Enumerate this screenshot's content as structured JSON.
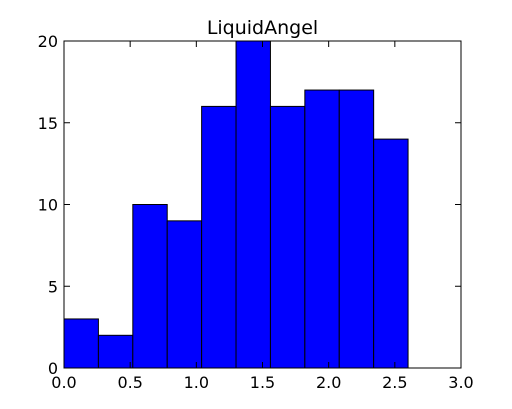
{
  "chart_data": {
    "type": "bar",
    "title": "LiquidAngel",
    "xlabel": "",
    "ylabel": "",
    "bin_edges": [
      0.0,
      0.26,
      0.52,
      0.78,
      1.04,
      1.3,
      1.56,
      1.82,
      2.08,
      2.34,
      2.6
    ],
    "values": [
      3,
      2,
      10,
      9,
      16,
      20,
      16,
      17,
      17,
      14
    ],
    "xlim": [
      0.0,
      3.0
    ],
    "ylim": [
      0,
      20
    ],
    "xticks": [
      0.0,
      0.5,
      1.0,
      1.5,
      2.0,
      2.5,
      3.0
    ],
    "xtick_labels": [
      "0.0",
      "0.5",
      "1.0",
      "1.5",
      "2.0",
      "2.5",
      "3.0"
    ],
    "yticks": [
      0,
      5,
      10,
      15,
      20
    ],
    "ytick_labels": [
      "0",
      "5",
      "10",
      "15",
      "20"
    ],
    "grid": false,
    "legend": "none",
    "colors": {
      "bar_fill": "#0000ff",
      "bar_edge": "#000000",
      "axes_edge": "#000000",
      "background": "#ffffff"
    }
  }
}
